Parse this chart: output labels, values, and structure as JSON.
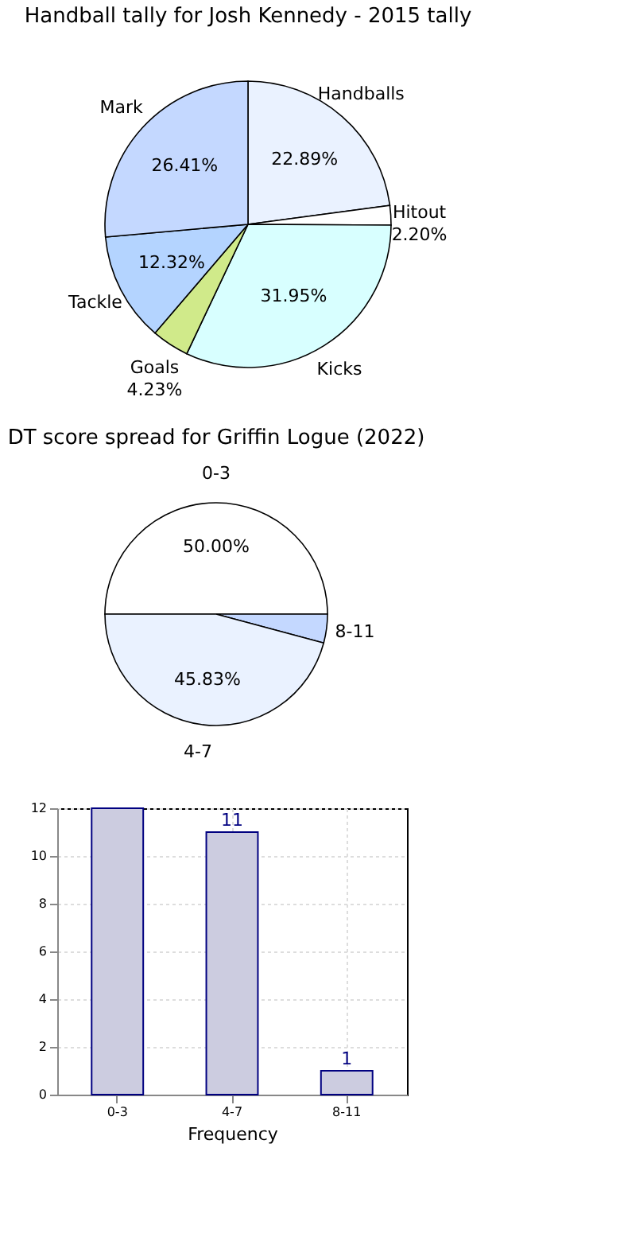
{
  "chart_data": [
    {
      "type": "pie",
      "title": "Handball tally for Josh Kennedy - 2015 tally",
      "categories": [
        "Handballs",
        "Hitout",
        "Kicks",
        "Goals",
        "Tackle",
        "Mark"
      ],
      "values": [
        22.89,
        2.2,
        31.95,
        4.23,
        12.32,
        26.41
      ],
      "colors": [
        "#eaf2ff",
        "#ffffff",
        "#d8ffff",
        "#d0ea8a",
        "#b4d4ff",
        "#c4d8ff"
      ],
      "value_labels": [
        "22.89%",
        "2.20%",
        "31.95%",
        "4.23%",
        "12.32%",
        "26.41%"
      ]
    },
    {
      "type": "pie",
      "title": "DT score spread for Griffin Logue (2022)",
      "categories": [
        "0-3",
        "8-11",
        "4-7"
      ],
      "values": [
        50.0,
        4.17,
        45.83
      ],
      "colors": [
        "#ffffff",
        "#c4d8ff",
        "#eaf2ff"
      ],
      "value_labels": [
        "50.00%",
        null,
        "45.83%"
      ]
    },
    {
      "type": "bar",
      "xlabel": "Frequency",
      "categories": [
        "0-3",
        "4-7",
        "8-11"
      ],
      "values": [
        12,
        11,
        1
      ],
      "color": "#cccce0",
      "value_labels": [
        null,
        "11",
        "1"
      ],
      "ylim": [
        0,
        12
      ],
      "yticks": [
        0,
        2,
        4,
        6,
        8,
        10,
        12
      ],
      "grid": true
    }
  ]
}
